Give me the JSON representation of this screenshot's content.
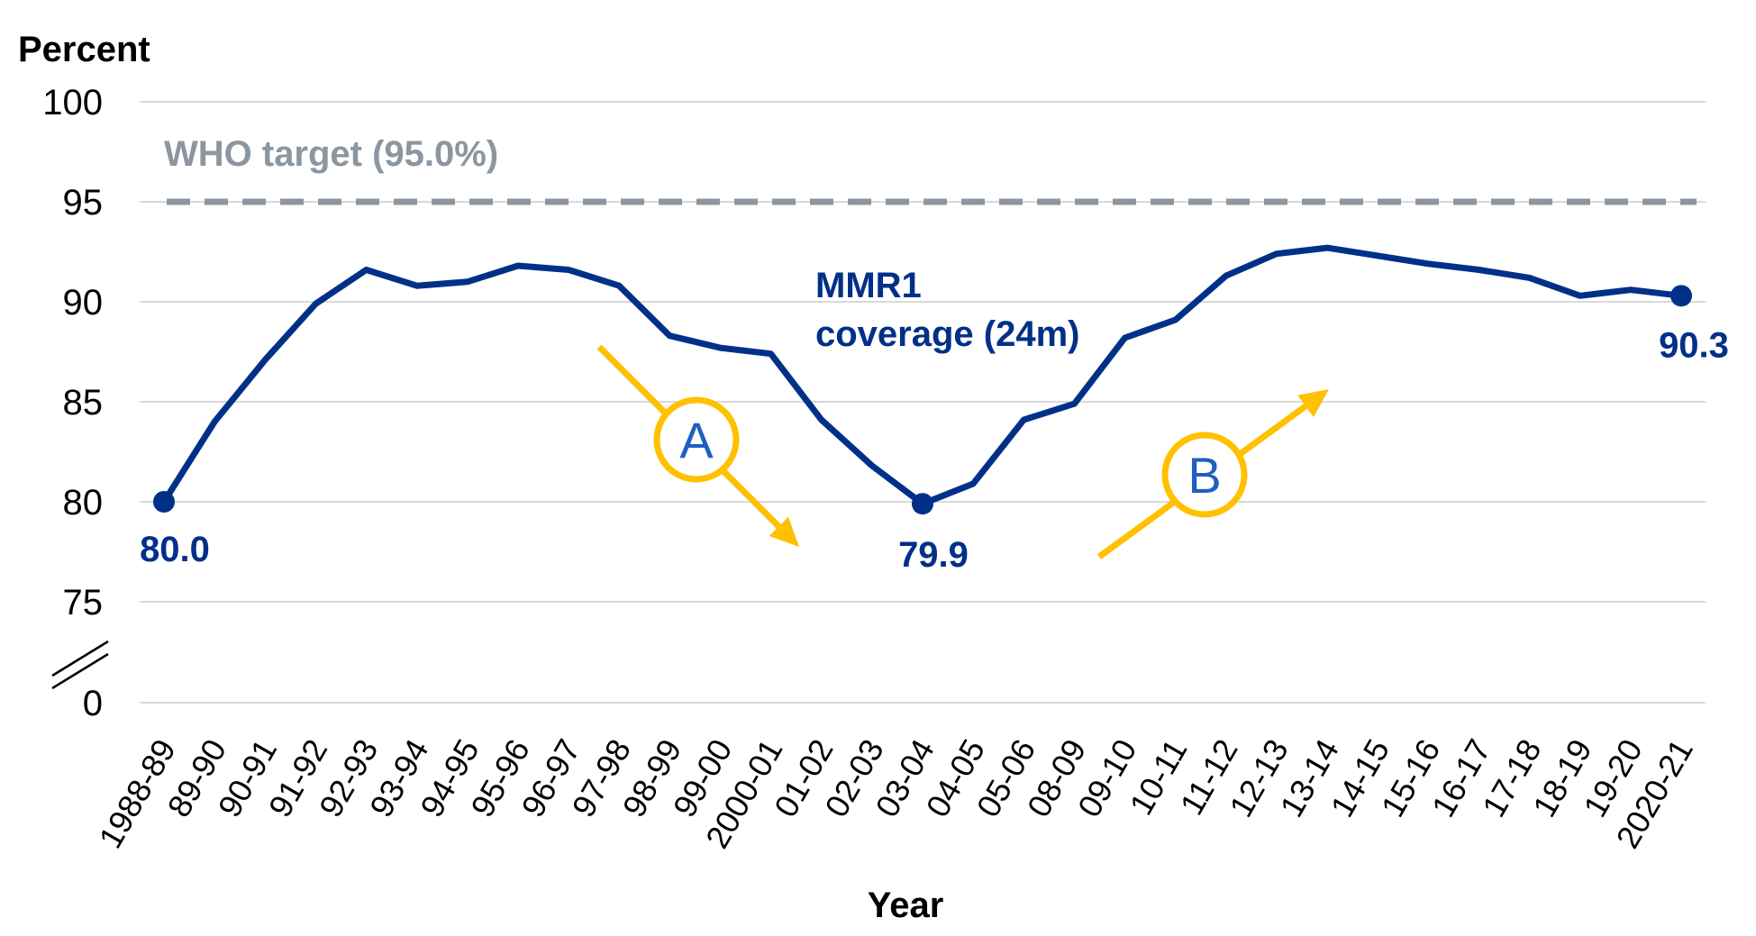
{
  "chart_data": {
    "type": "line",
    "ylabel": "Percent",
    "xlabel": "Year",
    "ylim": [
      75,
      100
    ],
    "yticks": [
      "100",
      "95",
      "90",
      "85",
      "80",
      "75",
      "0"
    ],
    "axis_break": true,
    "grid": true,
    "categories": [
      "1988-89",
      "89-90",
      "90-91",
      "91-92",
      "92-93",
      "93-94",
      "94-95",
      "95-96",
      "96-97",
      "97-98",
      "98-99",
      "99-00",
      "2000-01",
      "01-02",
      "02-03",
      "03-04",
      "04-05",
      "05-06",
      "08-09",
      "09-10",
      "10-11",
      "11-12",
      "12-13",
      "13-14",
      "14-15",
      "15-16",
      "16-17",
      "17-18",
      "18-19",
      "19-20",
      "2020-21"
    ],
    "series": [
      {
        "name": "MMR1 coverage (24m)",
        "color": "#003087",
        "values": [
          80.0,
          84.0,
          87.1,
          89.9,
          91.6,
          90.8,
          91.0,
          91.8,
          91.6,
          90.8,
          88.3,
          87.7,
          87.4,
          84.1,
          81.8,
          79.9,
          80.9,
          84.1,
          84.9,
          88.2,
          89.1,
          91.3,
          92.4,
          92.7,
          92.3,
          91.9,
          91.6,
          91.2,
          90.3,
          90.6,
          90.3
        ]
      }
    ],
    "reference_line": {
      "label": "WHO target (95.0%)",
      "value": 95.0,
      "color": "#8c96a0"
    },
    "data_labels": [
      {
        "index": 0,
        "text": "80.0"
      },
      {
        "index": 15,
        "text": "79.9"
      },
      {
        "index": 30,
        "text": "90.3"
      }
    ],
    "annotations": [
      {
        "letter": "A",
        "direction": "down",
        "color": "#ffc000",
        "text_color": "#1f5fbf"
      },
      {
        "letter": "B",
        "direction": "up",
        "color": "#ffc000",
        "text_color": "#1f5fbf"
      }
    ]
  }
}
